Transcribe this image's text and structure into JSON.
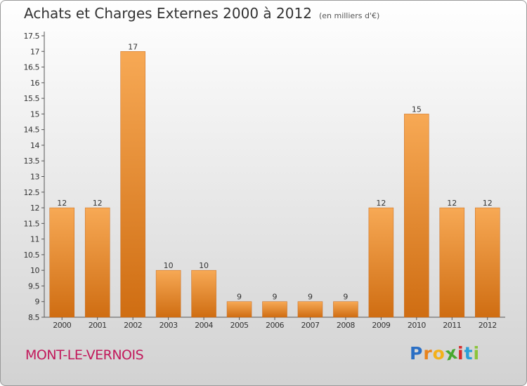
{
  "header": {
    "title": "Achats et Charges Externes 2000 à 2012",
    "unit": "(en milliers d'€)"
  },
  "footer": {
    "town": "MONT-LE-VERNOIS"
  },
  "logo": {
    "letters": [
      "P",
      "r",
      "o",
      "x",
      "i",
      "t",
      "i"
    ],
    "colors": [
      "#2b6fc4",
      "#e8831c",
      "#f3b11a",
      "#47a830",
      "#d62d2d",
      "#2b9fd8",
      "#8bc43a"
    ]
  },
  "chart_data": {
    "type": "bar",
    "title": "Achats et Charges Externes 2000 à 2012",
    "categories": [
      "2000",
      "2001",
      "2002",
      "2003",
      "2004",
      "2005",
      "2006",
      "2007",
      "2008",
      "2009",
      "2010",
      "2011",
      "2012"
    ],
    "values": [
      12,
      12,
      17,
      10,
      10,
      9,
      9,
      9,
      9,
      12,
      15,
      12,
      12
    ],
    "value_labels": [
      "12",
      "12",
      "17",
      "10",
      "10",
      "9",
      "9",
      "9",
      "9",
      "12",
      "15",
      "12",
      "12"
    ],
    "ylim": [
      8.5,
      17.5
    ],
    "yticks": [
      "8.5",
      "9",
      "9.5",
      "10",
      "10.5",
      "11",
      "11.5",
      "12",
      "12.5",
      "13",
      "13.5",
      "14",
      "14.5",
      "15",
      "15.5",
      "16",
      "16.5",
      "17",
      "17.5"
    ],
    "grid": false,
    "bar_color": "#e98a2c"
  }
}
